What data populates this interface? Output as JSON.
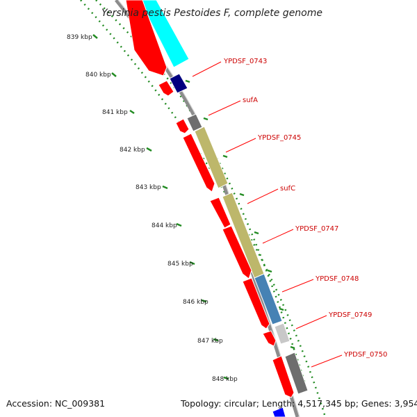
{
  "title": "Yersinia pestis Pestoides F, complete genome",
  "footer": {
    "accession": "Accession: NC_009381",
    "summary": "Topology: circular; Length: 4,517,345 bp; Genes: 3,954"
  },
  "scale_labels": [
    "839 kbp",
    "840 kbp",
    "841 kbp",
    "842 kbp",
    "843 kbp",
    "844 kbp",
    "845 kbp",
    "846 kbp",
    "847 kbp",
    "848 kbp"
  ],
  "gene_labels": [
    "YPDSF_0743",
    "sufA",
    "YPDSF_0745",
    "sufC",
    "YPDSF_0747",
    "YPDSF_0748",
    "YPDSF_0749",
    "YPDSF_0750"
  ],
  "colors": {
    "cds": "#ff0000",
    "scale_green": "#228B22",
    "backbone": "#8c8c8c",
    "cyan": "#00ffff",
    "navy": "#00007f",
    "dark_gray": "#6e6e6e",
    "olive": "#bdb76b",
    "steel_blue": "#4682b4",
    "light_gray": "#c8c8c8",
    "blue": "#0000ff",
    "label_red": "#cc0000"
  }
}
